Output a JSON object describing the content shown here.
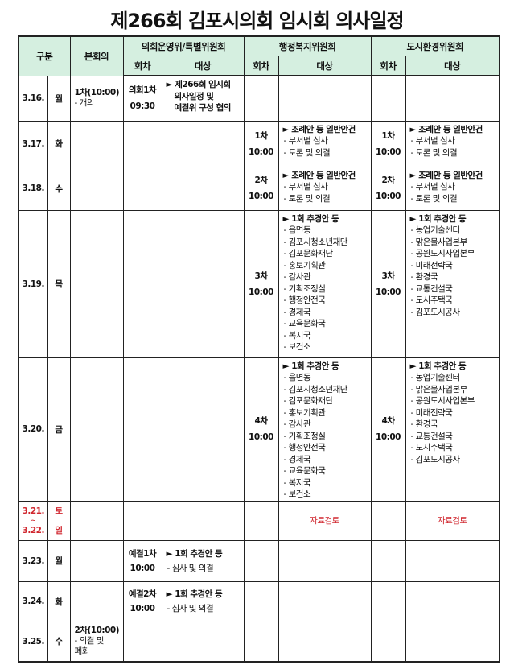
{
  "title": "제266회 김포시의회 임시회 의사일정",
  "header": {
    "gubun": "구분",
    "bon": "본회의",
    "committee1": "의회운영위/특별위원회",
    "committee2": "행정복지위원회",
    "committee3": "도시환경위원회",
    "round": "회차",
    "target": "대상"
  },
  "rows": [
    {
      "date": "3.16.",
      "day": "월",
      "bon": [
        "1차(10:00)",
        "- 개의"
      ],
      "c1_round": [
        "의회1차",
        "09:30"
      ],
      "c1_target": [
        "► 제266회 임시회",
        "의사일정 및",
        "예결위 구성 협의"
      ],
      "c2_round": [],
      "c2_target": [],
      "c3_round": [],
      "c3_target": []
    },
    {
      "date": "3.17.",
      "day": "화",
      "bon": [],
      "c1_round": [],
      "c1_target": [],
      "c2_round": [
        "1차",
        "10:00"
      ],
      "c2_target": [
        "► 조례안 등 일반안건",
        "- 부서별 심사",
        "- 토론 및 의결"
      ],
      "c3_round": [
        "1차",
        "10:00"
      ],
      "c3_target": [
        "► 조례안 등 일반안건",
        "- 부서별 심사",
        "- 토론 및 의결"
      ]
    },
    {
      "date": "3.18.",
      "day": "수",
      "bon": [],
      "c1_round": [],
      "c1_target": [],
      "c2_round": [
        "2차",
        "10:00"
      ],
      "c2_target": [
        "► 조례안 등 일반안건",
        "- 부서별 심사",
        "- 토론 및 의결"
      ],
      "c3_round": [
        "2차",
        "10:00"
      ],
      "c3_target": [
        "► 조례안 등 일반안건",
        "- 부서별 심사",
        "- 토론 및 의결"
      ]
    },
    {
      "date": "3.19.",
      "day": "목",
      "bon": [],
      "c1_round": [],
      "c1_target": [],
      "c2_round": [
        "3차",
        "10:00"
      ],
      "c2_target": [
        "► 1회 추경안 등",
        "- 읍면동",
        "- 김포시청소년재단",
        "- 김포문화재단",
        "- 홍보기획관",
        "- 감사관",
        "- 기획조정실",
        "- 행정안전국",
        "- 경제국",
        "- 교육문화국",
        "- 복지국",
        "- 보건소"
      ],
      "c3_round": [
        "3차",
        "10:00"
      ],
      "c3_target": [
        "► 1회 추경안 등",
        "- 농업기술센터",
        "- 맑은물사업본부",
        "- 공원도시사업본부",
        "- 미래전략국",
        "- 환경국",
        "- 교통건설국",
        "- 도시주택국",
        "- 김포도시공사"
      ]
    },
    {
      "date": "3.20.",
      "day": "금",
      "bon": [],
      "c1_round": [],
      "c1_target": [],
      "c2_round": [
        "4차",
        "10:00"
      ],
      "c2_target": [
        "► 1회 추경안 등",
        "- 읍면동",
        "- 김포시청소년재단",
        "- 김포문화재단",
        "- 홍보기획관",
        "- 감사관",
        "- 기획조정실",
        "- 행정안전국",
        "- 경제국",
        "- 교육문화국",
        "- 복지국",
        "- 보건소"
      ],
      "c3_round": [
        "4차",
        "10:00"
      ],
      "c3_target": [
        "► 1회 추경안 등",
        "- 농업기술센터",
        "- 맑은물사업본부",
        "- 공원도시사업본부",
        "- 미래전략국",
        "- 환경국",
        "- 교통건설국",
        "- 도시주택국",
        "- 김포도시공사"
      ]
    },
    {
      "date": "3.21.",
      "date2": "~",
      "date3": "3.22.",
      "day": "토",
      "day2": "일",
      "c2_target_text": "자료검토",
      "c3_target_text": "자료검토"
    },
    {
      "date": "3.23.",
      "day": "월",
      "bon": [],
      "c1_round": [
        "예결1차",
        "10:00"
      ],
      "c1_target": [
        "► 1회 추경안 등",
        "- 심사 및 의결"
      ]
    },
    {
      "date": "3.24.",
      "day": "화",
      "bon": [],
      "c1_round": [
        "예결2차",
        "10:00"
      ],
      "c1_target": [
        "► 1회 추경안 등",
        "- 심사 및 의결"
      ]
    },
    {
      "date": "3.25.",
      "day": "수",
      "bon": [
        "2차(10:00)",
        "- 의결 및",
        "  폐회"
      ],
      "c1_round": [],
      "c1_target": []
    }
  ],
  "colors": {
    "header_bg": "#d5efe0",
    "weekend": "#d0272f"
  }
}
